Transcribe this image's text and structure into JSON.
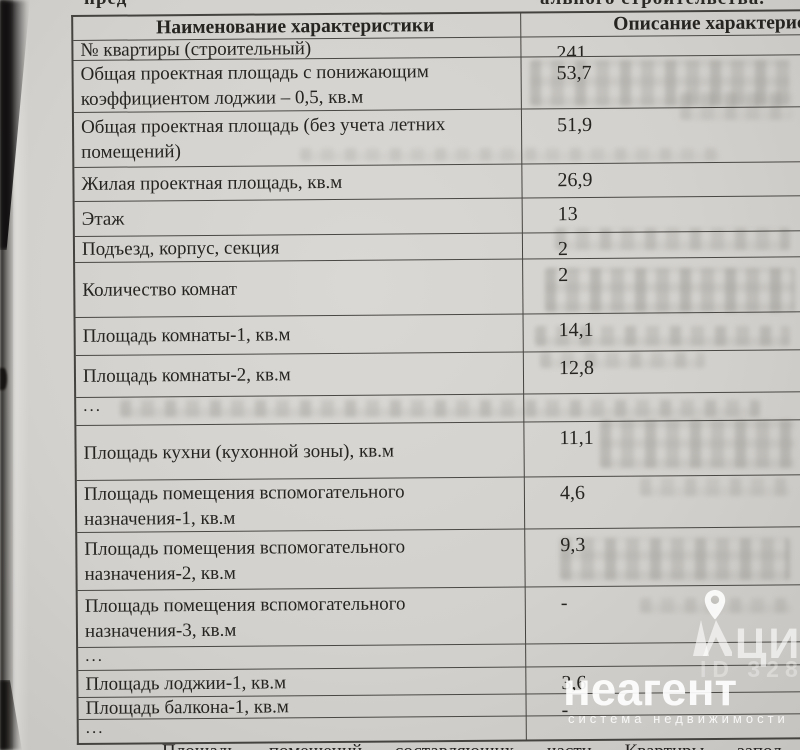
{
  "colors": {
    "paper": "#d4d2ce",
    "ink": "#262420",
    "table_border": "#45433f",
    "watermark": "#ffffff"
  },
  "page": {
    "top_cut_left": "пред",
    "top_cut_right": "ального строительства.",
    "bottom_cut_line": "Площадь помещений составляющих части Квартиры запол"
  },
  "table": {
    "headers": {
      "name": "Наименование характеристики",
      "value": "Описание характеристики"
    },
    "rows": [
      {
        "name": "№ квартиры (строительный)",
        "value": "241"
      },
      {
        "name": "Общая проектная площадь с понижающим коэффициентом лоджии – 0,5, кв.м",
        "value": "53,7"
      },
      {
        "name": "Общая проектная площадь (без учета летних помещений)",
        "value": "51,9"
      },
      {
        "name": "Жилая проектная площадь, кв.м",
        "value": "26,9"
      },
      {
        "name": "Этаж",
        "value": "13"
      },
      {
        "name": "Подъезд, корпус, секция",
        "value": "2"
      },
      {
        "name": "Количество комнат",
        "value": "2"
      },
      {
        "name": "Площадь комнаты-1, кв.м",
        "value": "14,1"
      },
      {
        "name": "Площадь комнаты-2, кв.м",
        "value": "12,8"
      },
      {
        "name": "...",
        "value": ""
      },
      {
        "name": "Площадь кухни (кухонной зоны), кв.м",
        "value": "11,1"
      },
      {
        "name": "Площадь помещения вспомогательного назначения-1, кв.м",
        "value": "4,6"
      },
      {
        "name": "Площадь помещения вспомогательного назначения-2, кв.м",
        "value": "9,3"
      },
      {
        "name": "Площадь помещения вспомогательного назначения-3, кв.м",
        "value": "-"
      },
      {
        "name": "...",
        "value": ""
      },
      {
        "name": "Площадь лоджии-1, кв.м",
        "value": "3,6"
      },
      {
        "name": "Площадь балкона-1, кв.м",
        "value": "-"
      },
      {
        "name": "...",
        "value": ""
      }
    ]
  },
  "watermark": {
    "brand": "неагент",
    "tagline": "система недвижимости",
    "id_text": "ID 328",
    "corner_letters": "ЦИ",
    "pin_icon": "location-pin",
    "logo_icon": "cian-figure"
  }
}
